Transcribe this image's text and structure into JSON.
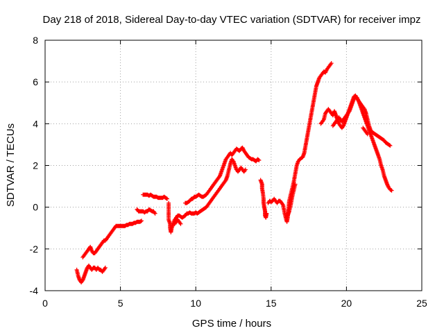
{
  "chart_data": {
    "type": "scatter",
    "title": "Day 218 of 2018, Sidereal Day-to-day VTEC variation (SDTVAR) for receiver impz",
    "xlabel": "GPS time / hours",
    "ylabel": "SDTVAR / TECUs",
    "xlim": [
      0,
      25
    ],
    "ylim": [
      -4,
      8
    ],
    "xticks": [
      "0",
      "5",
      "10",
      "15",
      "20",
      "25"
    ],
    "yticks": [
      "-4",
      "-2",
      "0",
      "2",
      "4",
      "6",
      "8"
    ],
    "grid": true,
    "marker": "+",
    "color": "#ff0000",
    "segments": [
      [
        [
          2.1,
          -3.0
        ],
        [
          2.2,
          -3.3
        ],
        [
          2.3,
          -3.5
        ],
        [
          2.4,
          -3.6
        ],
        [
          2.5,
          -3.5
        ],
        [
          2.6,
          -3.3
        ],
        [
          2.7,
          -3.1
        ],
        [
          2.8,
          -2.9
        ],
        [
          2.9,
          -2.8
        ],
        [
          3.0,
          -2.9
        ],
        [
          3.1,
          -3.0
        ],
        [
          3.2,
          -2.9
        ],
        [
          3.3,
          -2.9
        ],
        [
          3.4,
          -3.0
        ],
        [
          3.5,
          -2.9
        ],
        [
          3.6,
          -3.0
        ],
        [
          3.7,
          -3.0
        ],
        [
          3.8,
          -3.1
        ],
        [
          3.9,
          -3.0
        ],
        [
          4.0,
          -2.9
        ]
      ],
      [
        [
          2.5,
          -2.4
        ],
        [
          2.6,
          -2.3
        ],
        [
          2.7,
          -2.2
        ],
        [
          2.8,
          -2.1
        ],
        [
          2.9,
          -2.0
        ],
        [
          3.0,
          -1.9
        ],
        [
          3.1,
          -2.1
        ],
        [
          3.2,
          -2.2
        ],
        [
          3.3,
          -2.2
        ],
        [
          3.4,
          -2.1
        ],
        [
          3.5,
          -2.0
        ],
        [
          3.6,
          -1.9
        ],
        [
          3.7,
          -1.8
        ],
        [
          3.8,
          -1.7
        ],
        [
          3.9,
          -1.6
        ],
        [
          4.0,
          -1.6
        ],
        [
          4.1,
          -1.5
        ],
        [
          4.2,
          -1.4
        ],
        [
          4.3,
          -1.3
        ],
        [
          4.4,
          -1.2
        ],
        [
          4.5,
          -1.1
        ],
        [
          4.6,
          -1.0
        ],
        [
          4.7,
          -0.9
        ],
        [
          4.8,
          -0.9
        ],
        [
          4.9,
          -0.9
        ],
        [
          5.0,
          -0.9
        ],
        [
          5.1,
          -0.9
        ],
        [
          5.2,
          -0.9
        ],
        [
          5.3,
          -0.9
        ],
        [
          5.4,
          -0.85
        ],
        [
          5.5,
          -0.85
        ],
        [
          5.6,
          -0.8
        ],
        [
          5.7,
          -0.8
        ],
        [
          5.8,
          -0.8
        ],
        [
          5.9,
          -0.75
        ],
        [
          6.0,
          -0.75
        ],
        [
          6.1,
          -0.7
        ],
        [
          6.2,
          -0.7
        ],
        [
          6.3,
          -0.7
        ],
        [
          6.4,
          -0.65
        ]
      ],
      [
        [
          6.1,
          -0.1
        ],
        [
          6.2,
          -0.2
        ],
        [
          6.3,
          -0.2
        ],
        [
          6.4,
          -0.2
        ],
        [
          6.5,
          -0.2
        ],
        [
          6.6,
          -0.25
        ],
        [
          6.7,
          -0.2
        ],
        [
          6.8,
          -0.2
        ],
        [
          6.9,
          -0.1
        ],
        [
          7.0,
          -0.15
        ],
        [
          7.1,
          -0.2
        ],
        [
          7.2,
          -0.2
        ],
        [
          7.3,
          -0.3
        ]
      ],
      [
        [
          6.5,
          0.6
        ],
        [
          6.6,
          0.6
        ],
        [
          6.7,
          0.6
        ],
        [
          6.8,
          0.6
        ],
        [
          6.9,
          0.55
        ],
        [
          7.0,
          0.6
        ],
        [
          7.1,
          0.55
        ],
        [
          7.2,
          0.5
        ],
        [
          7.3,
          0.5
        ],
        [
          7.4,
          0.5
        ],
        [
          7.5,
          0.45
        ],
        [
          7.6,
          0.45
        ],
        [
          7.7,
          0.45
        ],
        [
          7.8,
          0.45
        ],
        [
          7.9,
          0.5
        ],
        [
          8.0,
          0.45
        ],
        [
          8.1,
          0.4
        ]
      ],
      [
        [
          8.2,
          0.2
        ],
        [
          8.2,
          -0.6
        ],
        [
          8.3,
          -0.8
        ],
        [
          8.3,
          -1.0
        ],
        [
          8.35,
          -1.2
        ],
        [
          8.4,
          -1.0
        ],
        [
          8.5,
          -0.8
        ],
        [
          8.6,
          -0.6
        ],
        [
          8.7,
          -0.5
        ],
        [
          8.8,
          -0.4
        ],
        [
          8.9,
          -0.4
        ],
        [
          9.0,
          -0.45
        ],
        [
          9.1,
          -0.5
        ],
        [
          9.2,
          -0.45
        ],
        [
          9.3,
          -0.4
        ],
        [
          9.4,
          -0.3
        ],
        [
          9.5,
          -0.3
        ],
        [
          9.6,
          -0.25
        ],
        [
          9.7,
          -0.3
        ],
        [
          9.8,
          -0.3
        ],
        [
          9.9,
          -0.3
        ],
        [
          10.0,
          -0.25
        ],
        [
          10.1,
          -0.3
        ],
        [
          10.2,
          -0.25
        ],
        [
          10.3,
          -0.2
        ],
        [
          10.4,
          -0.15
        ],
        [
          10.5,
          -0.1
        ],
        [
          10.6,
          -0.05
        ],
        [
          10.7,
          0.0
        ],
        [
          10.8,
          0.1
        ],
        [
          10.9,
          0.2
        ],
        [
          11.0,
          0.3
        ],
        [
          11.1,
          0.4
        ],
        [
          11.2,
          0.5
        ],
        [
          11.3,
          0.6
        ],
        [
          11.4,
          0.7
        ],
        [
          11.5,
          0.8
        ],
        [
          11.6,
          0.9
        ],
        [
          11.7,
          1.0
        ],
        [
          11.8,
          1.1
        ],
        [
          11.9,
          1.2
        ],
        [
          12.0,
          1.3
        ],
        [
          12.1,
          1.5
        ],
        [
          12.2,
          1.8
        ],
        [
          12.3,
          2.1
        ],
        [
          12.4,
          2.3
        ],
        [
          12.5,
          2.2
        ],
        [
          12.6,
          2.0
        ],
        [
          12.7,
          1.8
        ],
        [
          12.8,
          1.7
        ],
        [
          12.9,
          1.8
        ],
        [
          13.0,
          1.9
        ],
        [
          13.1,
          1.8
        ],
        [
          13.2,
          1.7
        ],
        [
          13.3,
          1.8
        ]
      ],
      [
        [
          8.6,
          -0.8
        ],
        [
          8.7,
          -0.7
        ],
        [
          8.8,
          -0.6
        ],
        [
          8.9,
          -0.7
        ],
        [
          9.0,
          -0.8
        ]
      ],
      [
        [
          9.3,
          0.2
        ],
        [
          9.4,
          0.2
        ],
        [
          9.5,
          0.25
        ],
        [
          9.6,
          0.3
        ],
        [
          9.7,
          0.4
        ],
        [
          9.8,
          0.4
        ],
        [
          9.9,
          0.5
        ],
        [
          10.0,
          0.5
        ],
        [
          10.1,
          0.55
        ],
        [
          10.2,
          0.6
        ],
        [
          10.3,
          0.55
        ],
        [
          10.4,
          0.5
        ],
        [
          10.5,
          0.5
        ],
        [
          10.6,
          0.55
        ],
        [
          10.7,
          0.6
        ],
        [
          10.8,
          0.7
        ],
        [
          10.9,
          0.8
        ],
        [
          11.0,
          0.9
        ],
        [
          11.1,
          1.0
        ],
        [
          11.2,
          1.1
        ],
        [
          11.3,
          1.2
        ],
        [
          11.4,
          1.3
        ],
        [
          11.5,
          1.4
        ],
        [
          11.6,
          1.5
        ],
        [
          11.7,
          1.7
        ],
        [
          11.8,
          1.9
        ],
        [
          11.9,
          2.1
        ],
        [
          12.0,
          2.3
        ],
        [
          12.1,
          2.4
        ],
        [
          12.2,
          2.5
        ],
        [
          12.3,
          2.6
        ],
        [
          12.4,
          2.5
        ],
        [
          12.5,
          2.6
        ],
        [
          12.6,
          2.7
        ],
        [
          12.7,
          2.8
        ],
        [
          12.8,
          2.75
        ],
        [
          12.9,
          2.7
        ],
        [
          13.0,
          2.8
        ],
        [
          13.1,
          2.85
        ],
        [
          13.2,
          2.7
        ],
        [
          13.3,
          2.6
        ],
        [
          13.4,
          2.5
        ],
        [
          13.5,
          2.4
        ],
        [
          13.6,
          2.35
        ],
        [
          13.7,
          2.3
        ],
        [
          13.8,
          2.3
        ],
        [
          13.9,
          2.25
        ],
        [
          14.0,
          2.2
        ],
        [
          14.1,
          2.3
        ],
        [
          14.2,
          2.25
        ]
      ],
      [
        [
          14.3,
          1.3
        ],
        [
          14.4,
          1.1
        ],
        [
          14.4,
          0.9
        ],
        [
          14.45,
          0.7
        ],
        [
          14.5,
          0.4
        ],
        [
          14.5,
          0.2
        ],
        [
          14.55,
          0.0
        ],
        [
          14.6,
          -0.2
        ],
        [
          14.6,
          -0.4
        ],
        [
          14.65,
          -0.5
        ],
        [
          14.7,
          -0.3
        ]
      ],
      [
        [
          14.8,
          0.2
        ],
        [
          14.9,
          0.3
        ],
        [
          15.0,
          0.25
        ],
        [
          15.1,
          0.3
        ],
        [
          15.2,
          0.4
        ],
        [
          15.3,
          0.3
        ],
        [
          15.4,
          0.2
        ],
        [
          15.5,
          0.3
        ],
        [
          15.6,
          0.3
        ],
        [
          15.7,
          0.2
        ],
        [
          15.8,
          0.1
        ],
        [
          15.9,
          -0.3
        ],
        [
          16.0,
          -0.6
        ],
        [
          16.05,
          -0.7
        ],
        [
          16.1,
          -0.5
        ],
        [
          16.15,
          -0.1
        ],
        [
          16.2,
          0.3
        ],
        [
          16.3,
          0.6
        ],
        [
          16.4,
          0.9
        ],
        [
          16.5,
          1.2
        ],
        [
          16.6,
          1.6
        ],
        [
          16.7,
          2.0
        ],
        [
          16.8,
          2.2
        ],
        [
          16.9,
          2.3
        ],
        [
          17.0,
          2.35
        ],
        [
          17.1,
          2.4
        ],
        [
          17.2,
          2.6
        ],
        [
          17.3,
          3.0
        ],
        [
          17.4,
          3.4
        ],
        [
          17.5,
          3.8
        ],
        [
          17.6,
          4.2
        ],
        [
          17.7,
          4.6
        ],
        [
          17.8,
          5.0
        ],
        [
          17.9,
          5.4
        ],
        [
          18.0,
          5.8
        ],
        [
          18.1,
          6.0
        ],
        [
          18.2,
          6.2
        ],
        [
          18.3,
          6.3
        ],
        [
          18.4,
          6.4
        ],
        [
          18.5,
          6.5
        ],
        [
          18.6,
          6.45
        ],
        [
          18.7,
          6.6
        ],
        [
          18.8,
          6.7
        ],
        [
          18.9,
          6.8
        ],
        [
          19.0,
          6.9
        ]
      ],
      [
        [
          16.0,
          -0.5
        ],
        [
          16.1,
          -0.4
        ],
        [
          16.2,
          -0.2
        ],
        [
          16.3,
          0.1
        ],
        [
          16.4,
          0.5
        ],
        [
          16.5,
          0.8
        ],
        [
          16.6,
          1.1
        ]
      ],
      [
        [
          18.3,
          4.0
        ],
        [
          18.4,
          4.1
        ],
        [
          18.5,
          4.2
        ],
        [
          18.6,
          4.5
        ],
        [
          18.7,
          4.6
        ],
        [
          18.8,
          4.7
        ],
        [
          18.9,
          4.6
        ],
        [
          19.0,
          4.5
        ],
        [
          19.1,
          4.4
        ],
        [
          19.2,
          4.6
        ],
        [
          19.3,
          4.4
        ],
        [
          19.4,
          4.2
        ],
        [
          19.5,
          4.0
        ],
        [
          19.6,
          3.9
        ],
        [
          19.7,
          3.8
        ],
        [
          19.8,
          3.9
        ],
        [
          19.9,
          4.1
        ],
        [
          20.0,
          4.3
        ],
        [
          20.1,
          4.5
        ],
        [
          20.2,
          4.7
        ],
        [
          20.3,
          4.9
        ],
        [
          20.4,
          5.1
        ],
        [
          20.5,
          5.3
        ],
        [
          20.6,
          5.35
        ],
        [
          20.7,
          5.2
        ],
        [
          20.8,
          5.1
        ],
        [
          20.9,
          5.0
        ],
        [
          21.0,
          4.9
        ],
        [
          21.1,
          4.8
        ],
        [
          21.2,
          4.7
        ],
        [
          21.3,
          4.5
        ],
        [
          21.4,
          4.2
        ],
        [
          21.5,
          3.9
        ],
        [
          21.6,
          3.7
        ],
        [
          21.7,
          3.6
        ],
        [
          21.8,
          3.55
        ],
        [
          21.9,
          3.5
        ],
        [
          22.0,
          3.45
        ],
        [
          22.1,
          3.4
        ],
        [
          22.2,
          3.35
        ],
        [
          22.3,
          3.3
        ],
        [
          22.4,
          3.25
        ],
        [
          22.5,
          3.2
        ],
        [
          22.6,
          3.1
        ],
        [
          22.7,
          3.05
        ],
        [
          22.8,
          3.0
        ],
        [
          22.9,
          2.95
        ]
      ],
      [
        [
          19.1,
          3.9
        ],
        [
          19.2,
          4.0
        ],
        [
          19.3,
          4.1
        ],
        [
          19.4,
          4.2
        ],
        [
          19.5,
          4.3
        ],
        [
          19.6,
          4.2
        ],
        [
          19.7,
          4.1
        ],
        [
          19.8,
          4.2
        ],
        [
          19.9,
          4.3
        ],
        [
          20.0,
          4.4
        ],
        [
          20.1,
          4.5
        ],
        [
          20.2,
          4.6
        ],
        [
          20.3,
          4.8
        ],
        [
          20.4,
          5.0
        ],
        [
          20.5,
          5.2
        ],
        [
          20.6,
          5.3
        ],
        [
          20.7,
          5.25
        ],
        [
          20.8,
          5.1
        ],
        [
          20.9,
          4.9
        ],
        [
          21.0,
          4.7
        ],
        [
          21.1,
          4.5
        ],
        [
          21.2,
          4.3
        ],
        [
          21.3,
          4.1
        ],
        [
          21.4,
          3.9
        ],
        [
          21.5,
          3.7
        ],
        [
          21.6,
          3.5
        ],
        [
          21.7,
          3.3
        ],
        [
          21.8,
          3.1
        ],
        [
          21.9,
          2.9
        ],
        [
          22.0,
          2.7
        ],
        [
          22.1,
          2.5
        ],
        [
          22.2,
          2.3
        ],
        [
          22.3,
          2.0
        ],
        [
          22.4,
          1.8
        ],
        [
          22.5,
          1.5
        ],
        [
          22.6,
          1.3
        ],
        [
          22.7,
          1.1
        ],
        [
          22.8,
          0.95
        ],
        [
          22.9,
          0.85
        ],
        [
          23.0,
          0.8
        ]
      ],
      [
        [
          21.1,
          3.8
        ],
        [
          21.2,
          3.7
        ],
        [
          21.3,
          3.6
        ],
        [
          21.4,
          3.5
        ]
      ]
    ]
  }
}
